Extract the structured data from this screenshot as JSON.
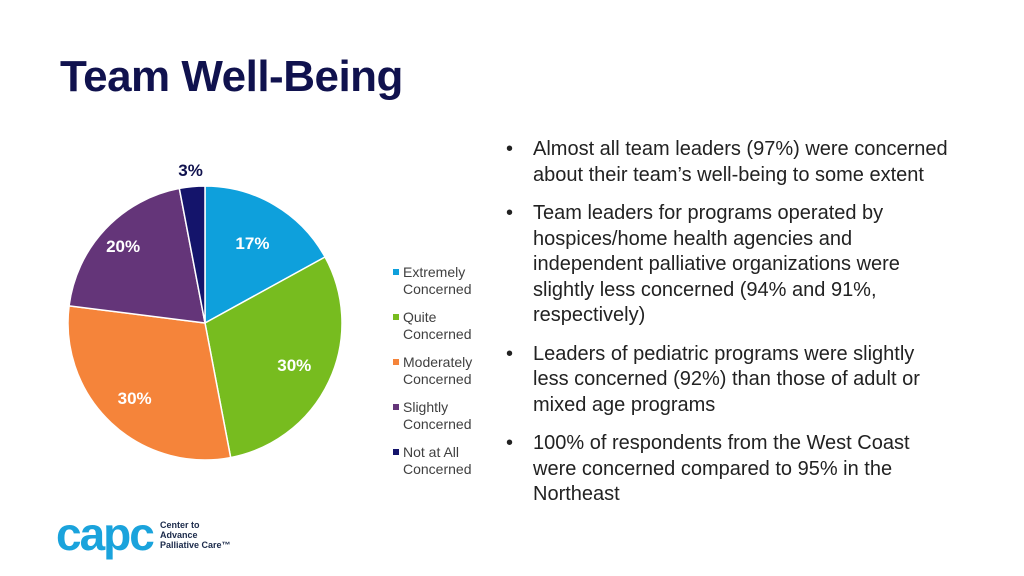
{
  "slide": {
    "title": "Team Well-Being"
  },
  "chart_data": {
    "type": "pie",
    "categories": [
      "Extremely Concerned",
      "Quite Concerned",
      "Moderately Concerned",
      "Slightly Concerned",
      "Not at All Concerned"
    ],
    "legend_lines": [
      [
        "Extremely",
        "Concerned"
      ],
      [
        "Quite",
        "Concerned"
      ],
      [
        "Moderately",
        "Concerned"
      ],
      [
        "Slightly",
        "Concerned"
      ],
      [
        "Not at All",
        "Concerned"
      ]
    ],
    "values": [
      17,
      30,
      30,
      20,
      3
    ],
    "labels": [
      "17%",
      "30%",
      "30%",
      "20%",
      "3%"
    ],
    "colors": [
      "#0ea0dc",
      "#77bc1f",
      "#f5843a",
      "#643579",
      "#14146b"
    ],
    "label_colors": [
      "#ffffff",
      "#ffffff",
      "#ffffff",
      "#ffffff",
      "#10124e"
    ],
    "legend_placement": "right"
  },
  "bullets": [
    "Almost all team leaders (97%) were concerned about their team’s well-being to some extent",
    "Team leaders for programs operated by hospices/home health agencies and independent palliative organizations were slightly less concerned (94% and 91%, respectively)",
    "Leaders of pediatric programs were slightly less concerned (92%) than those of adult or mixed age programs",
    "100% of respondents from the West Coast were concerned compared to 95% in the Northeast"
  ],
  "logo": {
    "word": "capc",
    "line1": "Center to",
    "line2": "Advance",
    "line3": "Palliative Care™"
  }
}
